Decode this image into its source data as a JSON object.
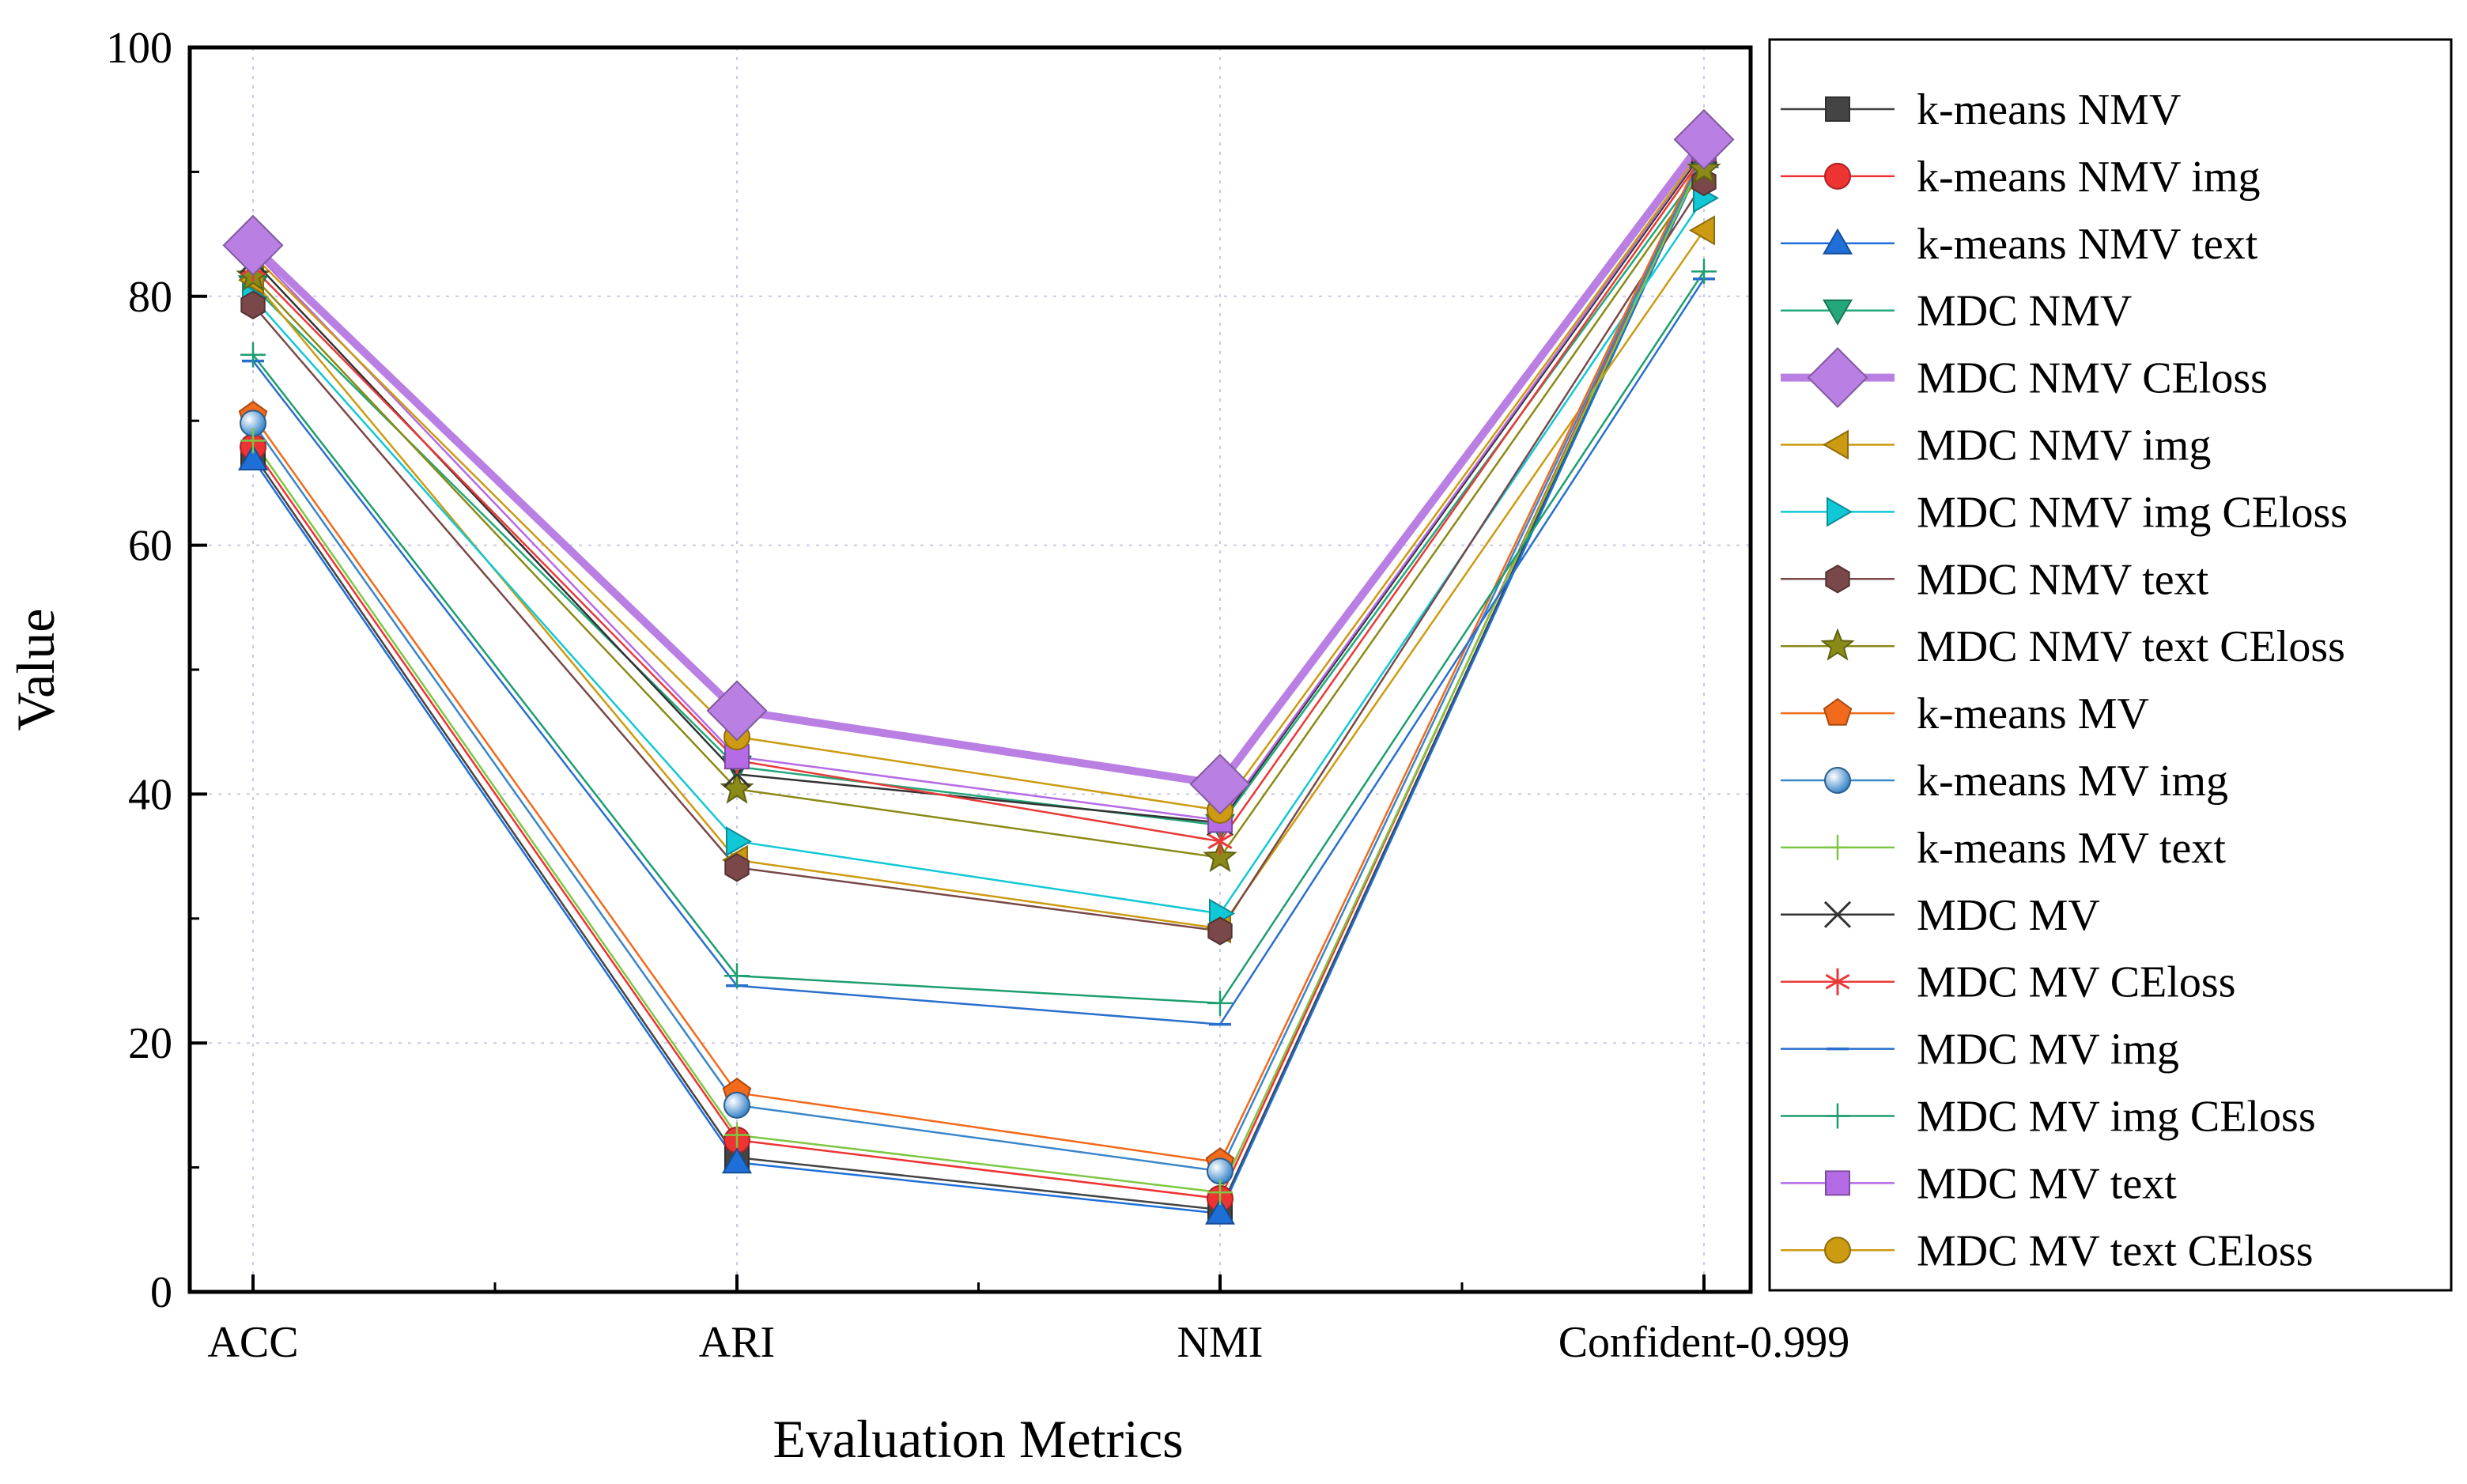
{
  "chart_data": {
    "type": "line",
    "title": "",
    "xlabel": "Evaluation Metrics",
    "ylabel": "Value",
    "categories": [
      "ACC",
      "ARI",
      "NMI",
      "Confident-0.999"
    ],
    "ylim": [
      0,
      100
    ],
    "yticks": [
      0,
      20,
      40,
      60,
      80,
      100
    ],
    "grid": "dotted vertical and horizontal",
    "legend_position": "right",
    "series": [
      {
        "name": "k-means NMV",
        "values": [
          67.3,
          10.8,
          6.6,
          91.5
        ],
        "color": "#444444",
        "marker": "square",
        "emphasis": false
      },
      {
        "name": "k-means NMV img",
        "values": [
          67.9,
          12.2,
          7.5,
          91.8
        ],
        "color": "#ee3333",
        "marker": "circle",
        "emphasis": false
      },
      {
        "name": "k-means NMV text",
        "values": [
          66.9,
          10.4,
          6.3,
          91.2
        ],
        "color": "#1f6fd8",
        "marker": "triangle-up",
        "emphasis": false
      },
      {
        "name": "MDC NMV",
        "values": [
          80.8,
          42.2,
          37.5,
          90.6
        ],
        "color": "#22a87a",
        "marker": "triangle-down",
        "emphasis": false
      },
      {
        "name": "MDC NMV CEloss",
        "values": [
          84.1,
          46.7,
          40.8,
          92.6
        ],
        "color": "#b97fe3",
        "marker": "diamond",
        "emphasis": true
      },
      {
        "name": "MDC NMV img",
        "values": [
          81.3,
          34.7,
          29.2,
          85.3
        ],
        "color": "#cc9b11",
        "marker": "triangle-left",
        "emphasis": false
      },
      {
        "name": "MDC NMV img CEloss",
        "values": [
          79.9,
          36.2,
          30.4,
          87.9
        ],
        "color": "#11c8d6",
        "marker": "triangle-right",
        "emphasis": false
      },
      {
        "name": "MDC NMV text",
        "values": [
          79.3,
          34.1,
          29.0,
          89.2
        ],
        "color": "#7a4848",
        "marker": "hexagon",
        "emphasis": false
      },
      {
        "name": "MDC NMV text CEloss",
        "values": [
          81.6,
          40.4,
          34.9,
          90.2
        ],
        "color": "#8a8a18",
        "marker": "star",
        "emphasis": false
      },
      {
        "name": "k-means MV",
        "values": [
          70.4,
          16.0,
          10.4,
          91.9
        ],
        "color": "#f26a1b",
        "marker": "pentagon",
        "emphasis": false
      },
      {
        "name": "k-means MV img",
        "values": [
          69.8,
          15.0,
          9.7,
          91.6
        ],
        "color": "#3a86c9",
        "marker": "sphere",
        "emphasis": false
      },
      {
        "name": "k-means MV text",
        "values": [
          68.4,
          12.6,
          8.0,
          91.3
        ],
        "color": "#7dc742",
        "marker": "plus",
        "emphasis": false
      },
      {
        "name": "MDC MV",
        "values": [
          82.9,
          41.6,
          37.7,
          91.7
        ],
        "color": "#333333",
        "marker": "cross",
        "emphasis": false
      },
      {
        "name": "MDC MV CEloss",
        "values": [
          82.3,
          42.7,
          36.2,
          91.4
        ],
        "color": "#e83a3a",
        "marker": "asterisk",
        "emphasis": false
      },
      {
        "name": "MDC MV img",
        "values": [
          74.8,
          24.6,
          21.5,
          81.4
        ],
        "color": "#2a6fcc",
        "marker": "dash",
        "emphasis": false
      },
      {
        "name": "MDC MV img CEloss",
        "values": [
          75.3,
          25.4,
          23.2,
          82.0
        ],
        "color": "#1d9e6e",
        "marker": "thin-plus",
        "emphasis": false
      },
      {
        "name": "MDC MV text",
        "values": [
          83.7,
          43.0,
          37.9,
          91.9
        ],
        "color": "#b56be6",
        "marker": "square",
        "emphasis": false
      },
      {
        "name": "MDC MV text CEloss",
        "values": [
          83.3,
          44.6,
          38.7,
          92.0
        ],
        "color": "#cc9b11",
        "marker": "circle",
        "emphasis": false
      }
    ]
  }
}
